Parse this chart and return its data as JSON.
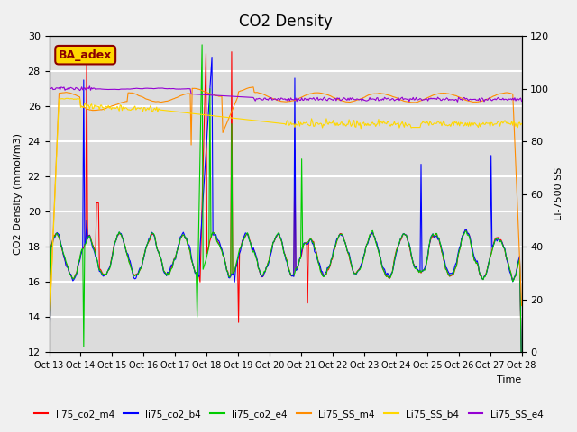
{
  "title": "CO2 Density",
  "ylabel_left": "CO2 Density (mmol/m3)",
  "ylabel_right": "LI-7500 SS",
  "xlabel": "Time",
  "ylim_left": [
    12,
    30
  ],
  "ylim_right": [
    0,
    120
  ],
  "xtick_labels": [
    "Oct 13",
    "Oct 14",
    "Oct 15",
    "Oct 16",
    "Oct 17",
    "Oct 18",
    "Oct 19",
    "Oct 20",
    "Oct 21",
    "Oct 22",
    "Oct 23",
    "Oct 24",
    "Oct 25",
    "Oct 26",
    "Oct 27",
    "Oct 28"
  ],
  "annotation_text": "BA_adex",
  "annotation_color": "#8B0000",
  "annotation_bg": "#FFD700",
  "series_colors": {
    "li75_co2_m4": "#FF0000",
    "li75_co2_b4": "#0000FF",
    "li75_co2_e4": "#00CC00",
    "Li75_SS_m4": "#FF8C00",
    "Li75_SS_b4": "#FFD700",
    "Li75_SS_e4": "#9400D3"
  },
  "background_color": "#DCDCDC",
  "grid_color": "#FFFFFF",
  "title_fontsize": 12
}
